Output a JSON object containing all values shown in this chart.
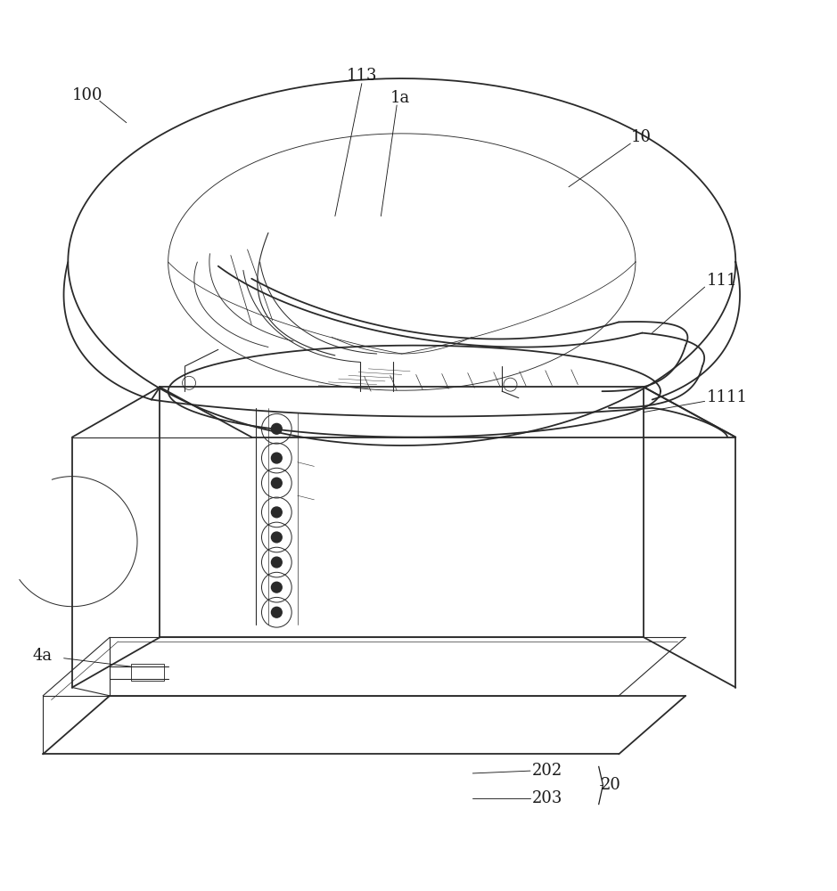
{
  "bg_color": "#ffffff",
  "line_color": "#2a2a2a",
  "label_color": "#1a1a1a",
  "fig_width": 9.39,
  "fig_height": 10.0
}
